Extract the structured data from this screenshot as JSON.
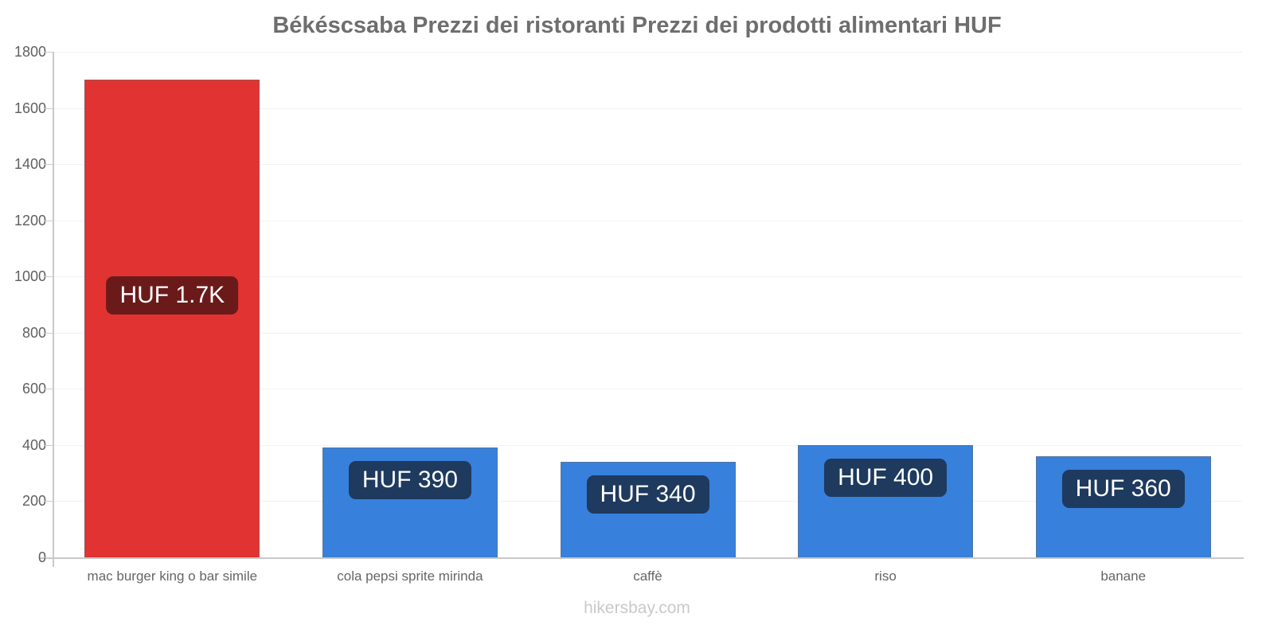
{
  "title": "Békéscsaba Prezzi dei ristoranti Prezzi dei prodotti alimentari HUF",
  "footer": "hikersbay.com",
  "colors": {
    "restaurant_bar": "#e23333",
    "restaurant_badge": "#6b1a1a",
    "grocery_bar": "#3780dc",
    "grocery_badge": "#1e3a5e",
    "axis_line": "#c9c9c9",
    "gridline": "#f2f2f2",
    "title_text": "#6e6e6e",
    "tick_text": "#606060",
    "xlabel_text": "#666666",
    "footer_text": "#c9c9c9"
  },
  "chart_data": {
    "type": "bar",
    "title": "Békéscsaba Prezzi dei ristoranti Prezzi dei prodotti alimentari HUF",
    "currency": "HUF",
    "categories": [
      "mac burger king o bar simile",
      "cola pepsi sprite mirinda",
      "caffè",
      "riso",
      "banane"
    ],
    "values": [
      1700,
      390,
      340,
      400,
      360
    ],
    "value_labels": [
      "HUF 1.7K",
      "HUF 390",
      "HUF 340",
      "HUF 400",
      "HUF 360"
    ],
    "bar_colors": [
      "#e23333",
      "#3780dc",
      "#3780dc",
      "#3780dc",
      "#3780dc"
    ],
    "badge_colors": [
      "#6b1a1a",
      "#1e3a5e",
      "#1e3a5e",
      "#1e3a5e",
      "#1e3a5e"
    ],
    "xlabel": "",
    "ylabel": "",
    "ylim": [
      0,
      1800
    ],
    "yticks": [
      0,
      200,
      400,
      600,
      800,
      1000,
      1200,
      1400,
      1600,
      1800
    ],
    "grid": true,
    "legend": false
  }
}
